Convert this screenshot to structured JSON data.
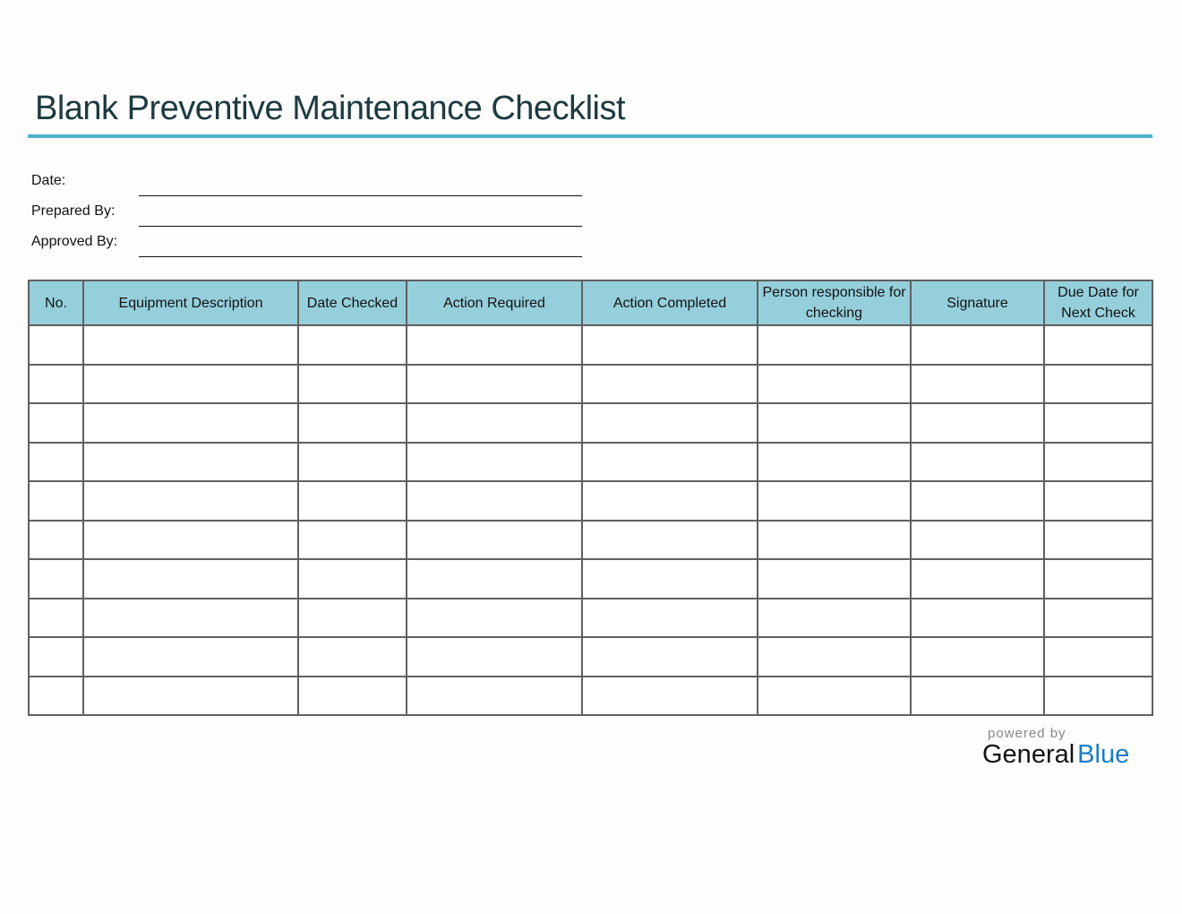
{
  "title": "Blank Preventive Maintenance Checklist",
  "accent_color": "#4bb3cb",
  "header_color": "#96cfdc",
  "fields": [
    {
      "label": "Date:",
      "value": ""
    },
    {
      "label": "Prepared By:",
      "value": ""
    },
    {
      "label": "Approved By:",
      "value": ""
    }
  ],
  "table": {
    "columns": [
      "No.",
      "Equipment Description",
      "Date Checked",
      "Action Required",
      "Action Completed",
      "Person responsible for checking",
      "Signature",
      "Due Date for Next Check"
    ],
    "row_count": 10
  },
  "footer": {
    "powered_by": "powered by",
    "brand_general": "General",
    "brand_blue": "Blue"
  }
}
